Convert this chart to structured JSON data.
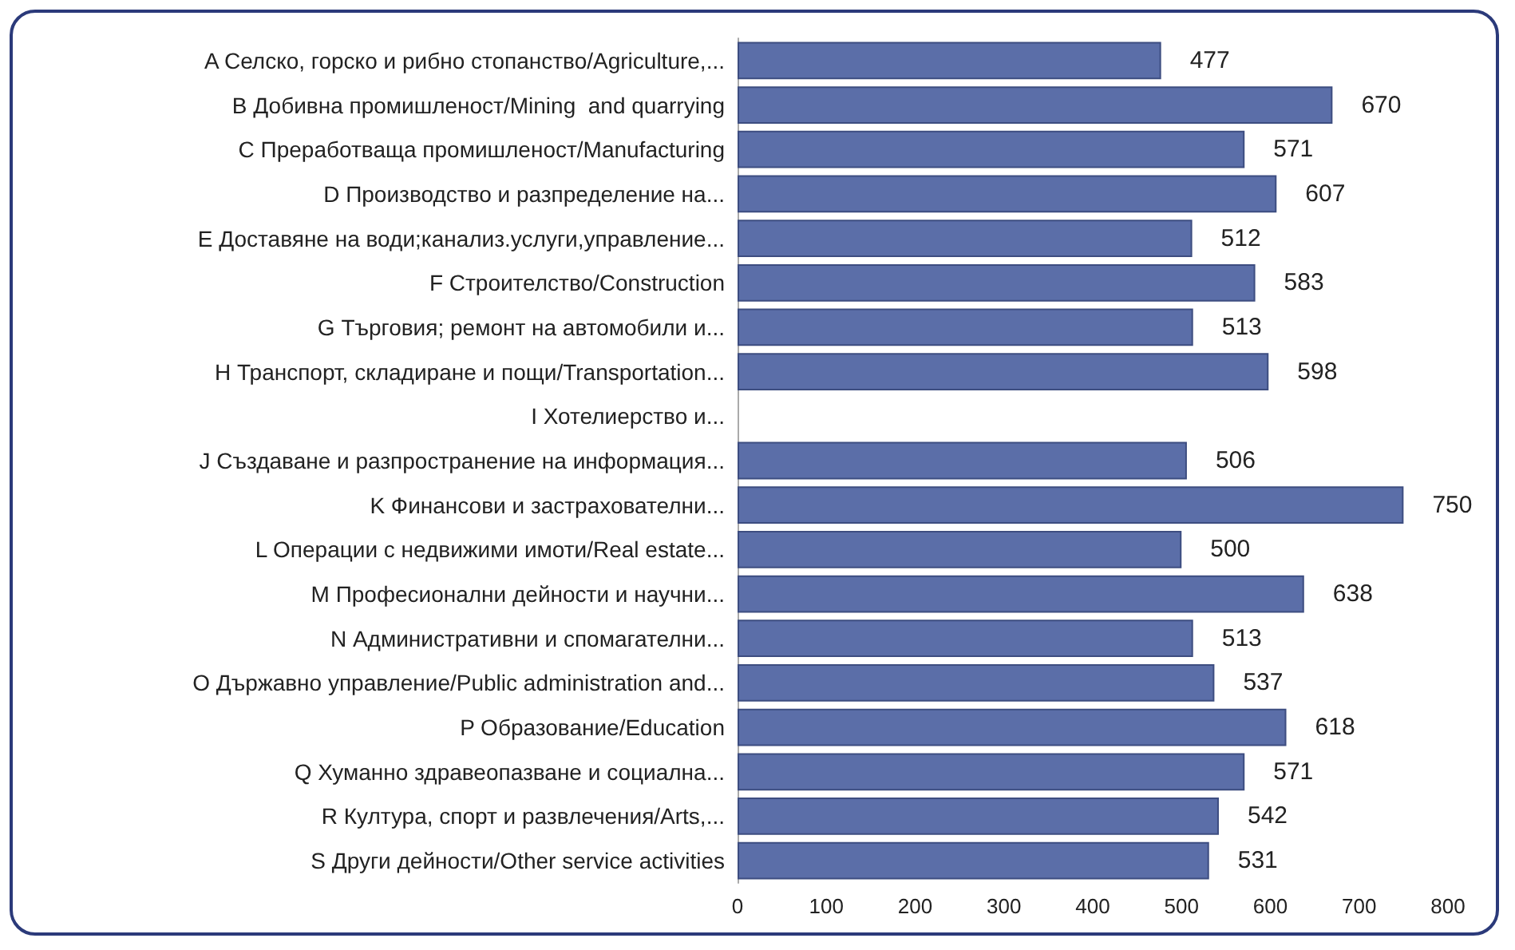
{
  "chart_data": {
    "type": "bar",
    "orientation": "horizontal",
    "data_labels": true,
    "grid": false,
    "color": "#5b6ea8",
    "categories": [
      "A Селско, горско и рибно стопанство/Agriculture,...",
      "B Добивна промишленост/Mining  and quarrying",
      "C Преработваща промишленост/Manufacturing",
      "D Производство и разпределение на...",
      "E Доставяне на води;канализ.услуги,управление...",
      "F Строителство/Construction",
      "G Търговия; ремонт на автомобили и...",
      "H Транспорт, складиране и пощи/Transportation...",
      "I Хотелиерство и...",
      "J Създаване и разпространение на информация...",
      "K Финансови и застрахователни...",
      "L Операции с недвижими имоти/Real estate...",
      "M Професионални дейности и научни...",
      "N Административни и спомагателни...",
      "O Държавно управление/Public administration and...",
      "P Образование/Education",
      "Q Хуманно здравеопазване и социална...",
      "R Култура, спорт и развлечения/Arts,...",
      "S Други дейности/Other service activities"
    ],
    "values": [
      477,
      670,
      571,
      607,
      512,
      583,
      513,
      598,
      null,
      506,
      750,
      500,
      638,
      513,
      537,
      618,
      571,
      542,
      531
    ],
    "xlim": [
      0,
      800
    ],
    "xticks": [
      0,
      100,
      200,
      300,
      400,
      500,
      600,
      700,
      800
    ]
  }
}
